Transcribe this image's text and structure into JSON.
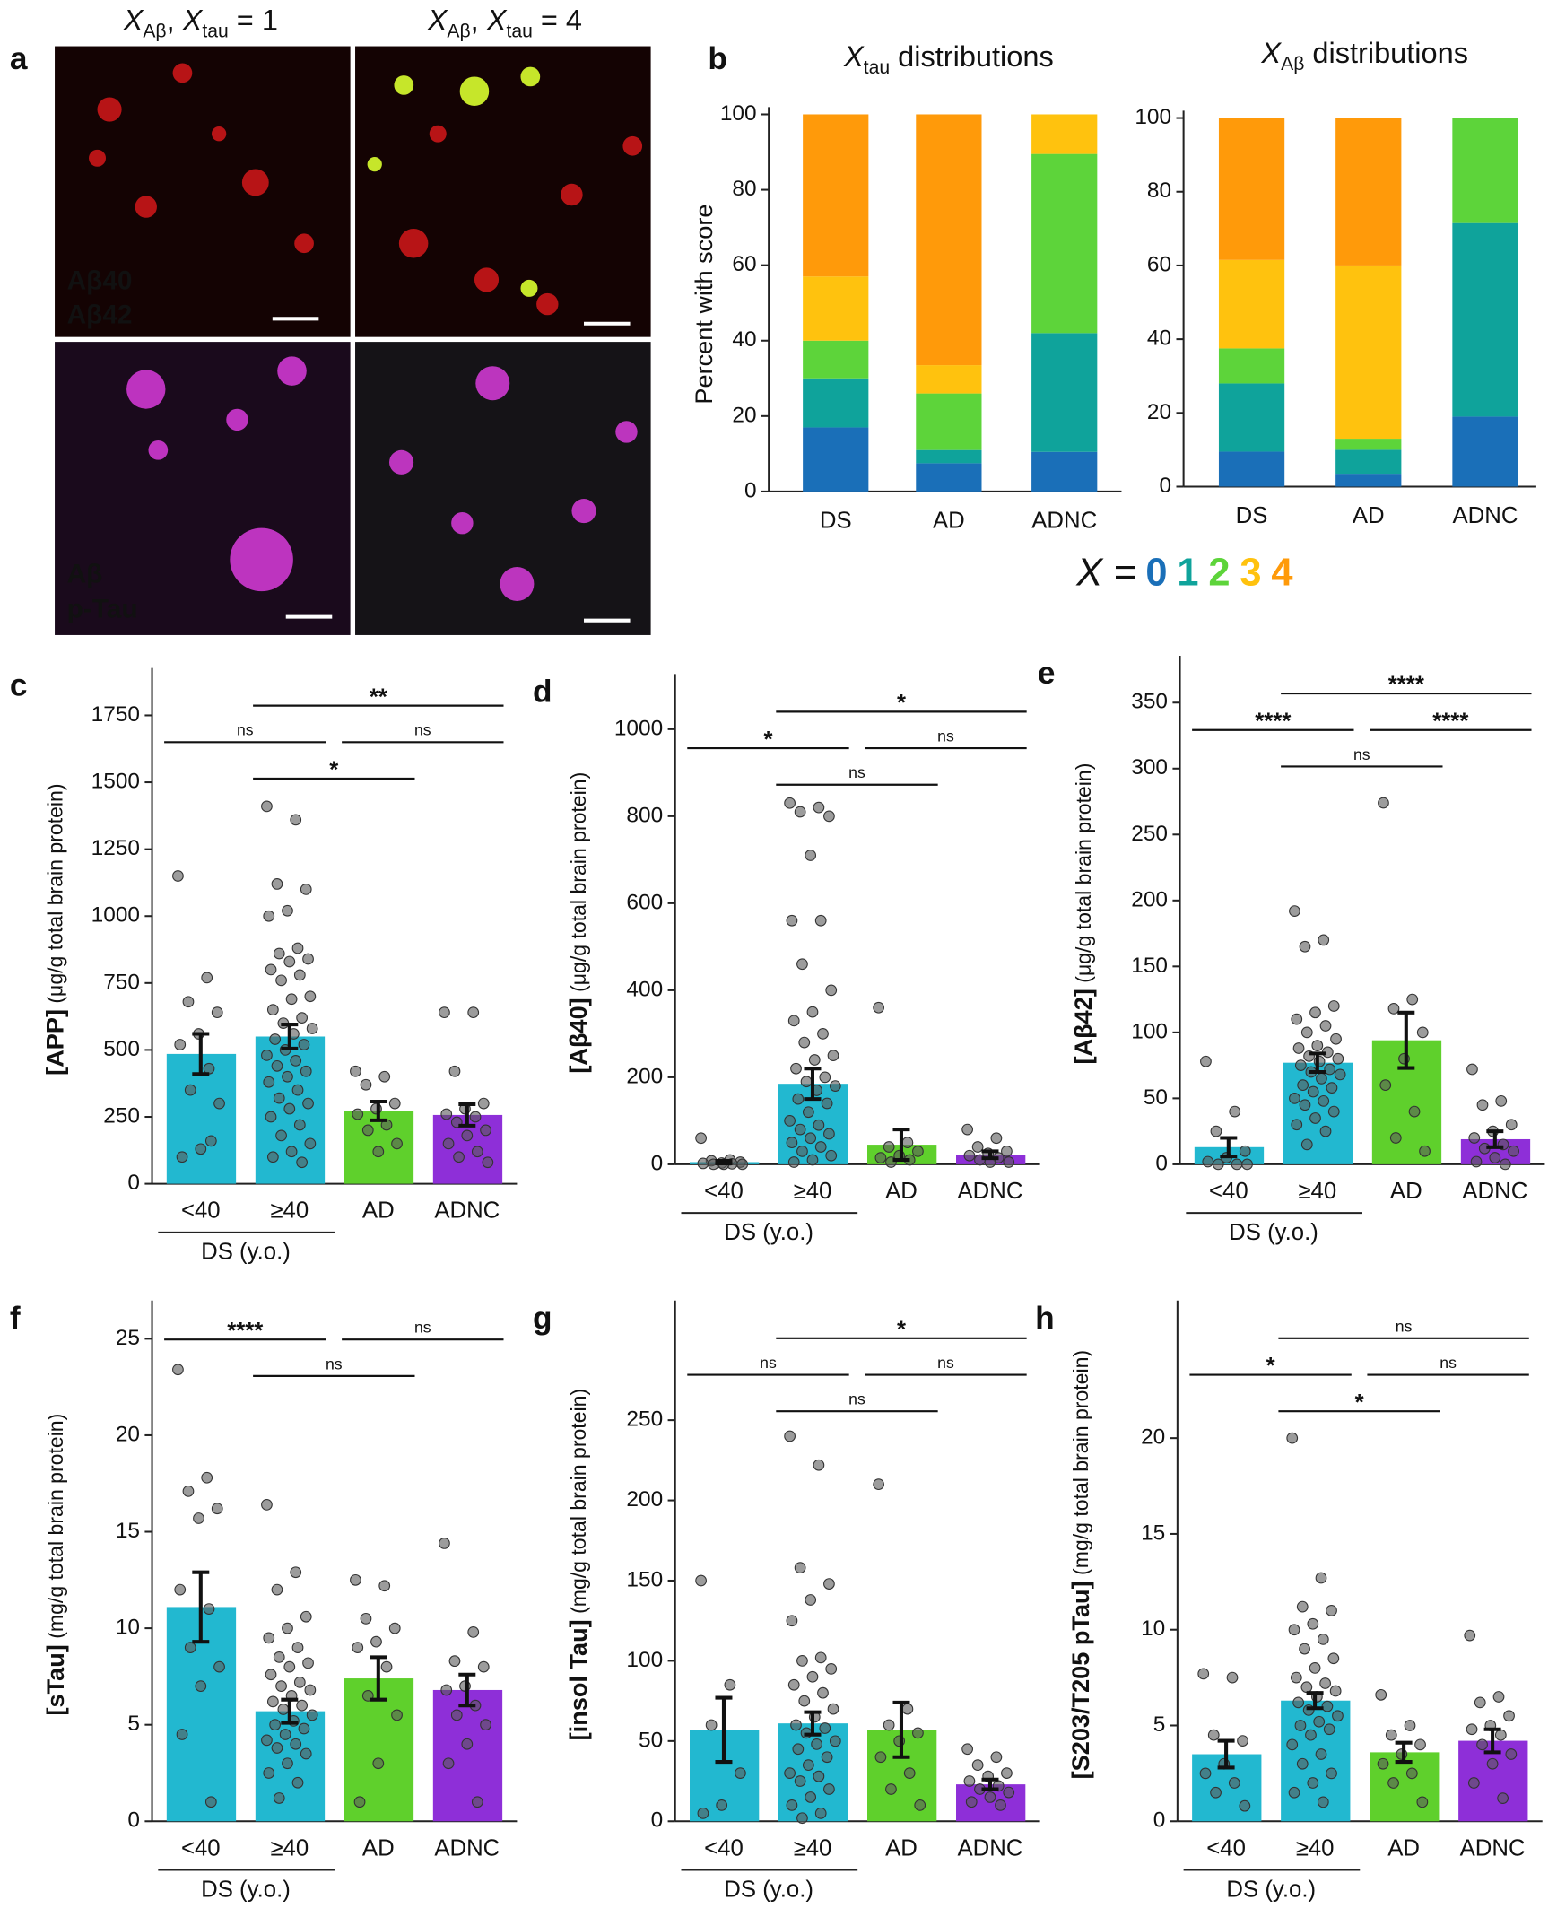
{
  "panel_a": {
    "letter": "a",
    "columns": [
      [
        "X",
        "Aβ",
        ", ",
        "X",
        "tau",
        " = 1"
      ],
      [
        "X",
        "Aβ",
        ", ",
        "X",
        "tau",
        " = 4"
      ]
    ],
    "labels_top": [
      "Aβ40",
      "Aβ42"
    ],
    "labels_bottom": [
      "Aβ",
      "p-Tau"
    ]
  },
  "chart_data": [
    {
      "type": "stacked_bar",
      "panel": "b",
      "title": [
        "X",
        "tau",
        " distributions"
      ],
      "ylabel": "Percent with score",
      "legend_title": "X =",
      "categories": [
        "DS",
        "AD",
        "ADNC"
      ],
      "ylim": [
        0,
        100
      ],
      "yticks": [
        0,
        20,
        40,
        60,
        80,
        100
      ],
      "series": [
        {
          "name": "0",
          "color": "#1a6fb8",
          "values": [
            17,
            7.5,
            10.5
          ]
        },
        {
          "name": "1",
          "color": "#0fa39b",
          "values": [
            13,
            3.5,
            31.5
          ]
        },
        {
          "name": "2",
          "color": "#5dd43a",
          "values": [
            10,
            15,
            47.5
          ]
        },
        {
          "name": "3",
          "color": "#ffc20e",
          "values": [
            17,
            7.5,
            10.5
          ]
        },
        {
          "name": "4",
          "color": "#ff9a0a",
          "values": [
            43,
            66.5,
            0
          ]
        }
      ]
    },
    {
      "type": "stacked_bar",
      "title": [
        "X",
        "Aβ",
        " distributions"
      ],
      "categories": [
        "DS",
        "AD",
        "ADNC"
      ],
      "ylim": [
        0,
        100
      ],
      "yticks": [
        0,
        20,
        40,
        60,
        80,
        100
      ],
      "series": [
        {
          "name": "0",
          "color": "#1a6fb8",
          "values": [
            9.5,
            3.5,
            19
          ]
        },
        {
          "name": "1",
          "color": "#0fa39b",
          "values": [
            18.5,
            6.5,
            52.5
          ]
        },
        {
          "name": "2",
          "color": "#5dd43a",
          "values": [
            9.5,
            3,
            28.5
          ]
        },
        {
          "name": "3",
          "color": "#ffc20e",
          "values": [
            24,
            47,
            0
          ]
        },
        {
          "name": "4",
          "color": "#ff9a0a",
          "values": [
            38.5,
            40,
            0
          ]
        }
      ]
    },
    {
      "type": "bar",
      "panel": "c",
      "ylabel": [
        "[APP]",
        " (μg/g total brain protein)"
      ],
      "group_label": "DS (y.o.)",
      "categories": [
        "<40",
        "≥40",
        "AD",
        "ADNC"
      ],
      "colors": [
        "#22b8d0",
        "#22b8d0",
        "#5fd02c",
        "#8e2fd8"
      ],
      "ylim": [
        0,
        1900
      ],
      "yticks": [
        0,
        250,
        500,
        750,
        1000,
        1250,
        1500,
        1750
      ],
      "values": [
        485,
        550,
        272,
        257
      ],
      "errors": [
        75,
        45,
        35,
        40
      ],
      "points": [
        [
          1150,
          770,
          680,
          640,
          560,
          520,
          430,
          350,
          300,
          130,
          100,
          160
        ],
        [
          1410,
          1360,
          1120,
          1100,
          1020,
          1000,
          880,
          860,
          840,
          830,
          800,
          780,
          760,
          700,
          690,
          650,
          620,
          600,
          580,
          560,
          540,
          520,
          500,
          480,
          460,
          440,
          420,
          400,
          380,
          350,
          320,
          300,
          280,
          250,
          220,
          180,
          150,
          120,
          100,
          80
        ],
        [
          420,
          400,
          370,
          300,
          280,
          260,
          220,
          200,
          150,
          120
        ],
        [
          640,
          640,
          420,
          300,
          280,
          260,
          250,
          230,
          200,
          180,
          150,
          120,
          100,
          80
        ]
      ],
      "significance": [
        {
          "pair": [
            0,
            1
          ],
          "label": "ns"
        },
        {
          "pair": [
            1,
            3
          ],
          "label": "**"
        },
        {
          "pair": [
            2,
            3
          ],
          "label": "ns"
        },
        {
          "pair": [
            1,
            2
          ],
          "label": "*"
        }
      ]
    },
    {
      "type": "bar",
      "panel": "d",
      "ylabel": [
        "[Aβ40]",
        " (μg/g total brain protein)"
      ],
      "group_label": "DS (y.o.)",
      "categories": [
        "<40",
        "≥40",
        "AD",
        "ADNC"
      ],
      "colors": [
        "#22b8d0",
        "#22b8d0",
        "#5fd02c",
        "#8e2fd8"
      ],
      "ylim": [
        0,
        1110
      ],
      "yticks": [
        0,
        200,
        400,
        600,
        800,
        1000
      ],
      "values": [
        5,
        185,
        45,
        22
      ],
      "errors": [
        3,
        35,
        35,
        8
      ],
      "points": [
        [
          60,
          10,
          8,
          5,
          3,
          2,
          1,
          0,
          0,
          0
        ],
        [
          830,
          820,
          810,
          800,
          710,
          560,
          560,
          460,
          400,
          350,
          330,
          300,
          280,
          250,
          240,
          220,
          200,
          190,
          180,
          170,
          150,
          140,
          120,
          100,
          90,
          80,
          70,
          60,
          50,
          40,
          30,
          20,
          10,
          5
        ],
        [
          360,
          50,
          40,
          30,
          20,
          15,
          10,
          5
        ],
        [
          80,
          60,
          40,
          30,
          25,
          20,
          15,
          10,
          5,
          5
        ]
      ],
      "significance": [
        {
          "pair": [
            0,
            1
          ],
          "label": "*"
        },
        {
          "pair": [
            1,
            3
          ],
          "label": "*"
        },
        {
          "pair": [
            2,
            3
          ],
          "label": "ns"
        },
        {
          "pair": [
            1,
            2
          ],
          "label": "ns"
        }
      ]
    },
    {
      "type": "bar",
      "panel": "e",
      "ylabel": [
        "[Aβ42]",
        " (μg/g total brain protein)"
      ],
      "group_label": "DS (y.o.)",
      "categories": [
        "<40",
        "≥40",
        "AD",
        "ADNC"
      ],
      "colors": [
        "#22b8d0",
        "#22b8d0",
        "#5fd02c",
        "#8e2fd8"
      ],
      "ylim": [
        0,
        380
      ],
      "yticks": [
        0,
        50,
        100,
        150,
        200,
        250,
        300,
        350
      ],
      "values": [
        13,
        77,
        94,
        19
      ],
      "errors": [
        7,
        7,
        21,
        6
      ],
      "points": [
        [
          78,
          40,
          25,
          10,
          5,
          2,
          0,
          0,
          0
        ],
        [
          192,
          170,
          165,
          120,
          115,
          110,
          105,
          100,
          95,
          90,
          88,
          85,
          82,
          80,
          78,
          75,
          72,
          70,
          68,
          65,
          60,
          58,
          55,
          50,
          48,
          45,
          40,
          35,
          30,
          25,
          15
        ],
        [
          274,
          125,
          118,
          100,
          80,
          60,
          40,
          20,
          10
        ],
        [
          72,
          48,
          45,
          30,
          25,
          20,
          15,
          12,
          10,
          5,
          2,
          0
        ]
      ],
      "significance": [
        {
          "pair": [
            0,
            1
          ],
          "label": "****"
        },
        {
          "pair": [
            1,
            3
          ],
          "label": "****"
        },
        {
          "pair": [
            2,
            3
          ],
          "label": "****"
        },
        {
          "pair": [
            1,
            2
          ],
          "label": "ns"
        }
      ]
    },
    {
      "type": "bar",
      "panel": "f",
      "ylabel": [
        "[sTau]",
        " (mg/g total brain protein)"
      ],
      "group_label": "DS (y.o.)",
      "categories": [
        "<40",
        "≥40",
        "AD",
        "ADNC"
      ],
      "colors": [
        "#22b8d0",
        "#22b8d0",
        "#5fd02c",
        "#8e2fd8"
      ],
      "ylim": [
        0,
        26.6
      ],
      "yticks": [
        0,
        5,
        10,
        15,
        20,
        25
      ],
      "values": [
        11.1,
        5.7,
        7.4,
        6.8
      ],
      "errors": [
        1.8,
        0.6,
        1.1,
        0.8
      ],
      "points": [
        [
          23.4,
          17.8,
          17.1,
          16.2,
          15.7,
          12,
          11,
          9,
          8,
          7,
          4.5,
          1
        ],
        [
          16.4,
          12.9,
          12,
          10.6,
          10,
          9.5,
          9,
          8.5,
          8.2,
          8,
          7.6,
          7.2,
          7,
          6.8,
          6.5,
          6.2,
          6,
          5.8,
          5.5,
          5.2,
          5,
          4.8,
          4.5,
          4.2,
          4,
          3.8,
          3.5,
          3,
          2.5,
          2,
          1.2
        ],
        [
          12.5,
          12.2,
          10.5,
          10,
          9.3,
          9,
          8,
          6.5,
          5.5,
          3,
          1
        ],
        [
          14.4,
          9.8,
          8.3,
          8,
          7,
          6.8,
          6,
          5.5,
          5,
          4,
          3,
          1
        ]
      ],
      "significance": [
        {
          "pair": [
            0,
            1
          ],
          "label": "****"
        },
        {
          "pair": [
            2,
            3
          ],
          "label": "ns"
        },
        {
          "pair": [
            1,
            2
          ],
          "label": "ns"
        }
      ]
    },
    {
      "type": "bar",
      "panel": "g",
      "ylabel": [
        "[insol Tau]",
        " (mg/g total brain protein)"
      ],
      "group_label": "DS (y.o.)",
      "categories": [
        "<40",
        "≥40",
        "AD",
        "ADNC"
      ],
      "colors": [
        "#22b8d0",
        "#22b8d0",
        "#5fd02c",
        "#8e2fd8"
      ],
      "ylim": [
        0,
        320
      ],
      "yticks": [
        0,
        50,
        100,
        150,
        200,
        250
      ],
      "values": [
        57,
        61,
        57,
        23
      ],
      "errors": [
        20,
        7,
        17,
        3
      ],
      "points": [
        [
          150,
          85,
          60,
          30,
          10,
          5
        ],
        [
          240,
          222,
          158,
          148,
          138,
          125,
          102,
          100,
          95,
          90,
          85,
          80,
          75,
          70,
          65,
          60,
          58,
          55,
          50,
          48,
          45,
          40,
          35,
          30,
          28,
          25,
          20,
          15,
          10,
          5,
          2
        ],
        [
          210,
          70,
          60,
          55,
          50,
          40,
          30,
          20,
          10
        ],
        [
          45,
          40,
          35,
          30,
          28,
          25,
          22,
          20,
          18,
          15,
          12,
          10
        ]
      ],
      "significance": [
        {
          "pair": [
            0,
            1
          ],
          "label": "ns"
        },
        {
          "pair": [
            1,
            3
          ],
          "label": "*"
        },
        {
          "pair": [
            2,
            3
          ],
          "label": "ns"
        },
        {
          "pair": [
            1,
            2
          ],
          "label": "ns"
        }
      ]
    },
    {
      "type": "bar",
      "panel": "h",
      "ylabel": [
        "[S203/T205 pTau]",
        " (mg/g total brain protein)"
      ],
      "group_label": "DS (y.o.)",
      "categories": [
        "<40",
        "≥40",
        "AD",
        "ADNC"
      ],
      "colors": [
        "#22b8d0",
        "#22b8d0",
        "#5fd02c",
        "#8e2fd8"
      ],
      "ylim": [
        0,
        26.8
      ],
      "yticks": [
        0,
        5,
        10,
        15,
        20
      ],
      "values": [
        3.5,
        6.3,
        3.6,
        4.2
      ],
      "errors": [
        0.7,
        0.4,
        0.5,
        0.6
      ],
      "points": [
        [
          7.7,
          7.5,
          4.5,
          4.2,
          3,
          2.5,
          2,
          1.5,
          0.8
        ],
        [
          20,
          12.7,
          11.2,
          11,
          10.3,
          10,
          9.5,
          9,
          8.5,
          8,
          7.5,
          7.2,
          7,
          6.8,
          6.5,
          6.2,
          6,
          5.8,
          5.5,
          5.2,
          5,
          4.8,
          4.5,
          4,
          3.5,
          3,
          2.5,
          2,
          1.5,
          1
        ],
        [
          6.6,
          5,
          4.5,
          4,
          3.5,
          3,
          2.5,
          2,
          1
        ],
        [
          9.7,
          6.5,
          6.2,
          5.5,
          5,
          4.8,
          4.5,
          4,
          3.5,
          3,
          2,
          1.2
        ]
      ],
      "significance": [
        {
          "pair": [
            0,
            1
          ],
          "label": "*"
        },
        {
          "pair": [
            1,
            3
          ],
          "label": "ns"
        },
        {
          "pair": [
            2,
            3
          ],
          "label": "ns"
        },
        {
          "pair": [
            1,
            2
          ],
          "label": "*"
        }
      ]
    }
  ]
}
